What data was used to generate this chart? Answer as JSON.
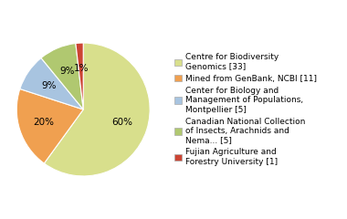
{
  "labels": [
    "Centre for Biodiversity\nGenomics [33]",
    "Mined from GenBank, NCBI [11]",
    "Center for Biology and\nManagement of Populations,\nMontpellier [5]",
    "Canadian National Collection\nof Insects, Arachnids and\nNema... [5]",
    "Fujian Agriculture and\nForestry University [1]"
  ],
  "values": [
    33,
    11,
    5,
    5,
    1
  ],
  "colors": [
    "#d8df8c",
    "#f0a050",
    "#a8c4e0",
    "#b0c870",
    "#cc4433"
  ],
  "pct_labels": [
    "60%",
    "20%",
    "9%",
    "9%",
    "1%"
  ],
  "startangle": 90,
  "counterclock": false,
  "background_color": "#ffffff",
  "legend_fontsize": 6.5,
  "pct_fontsize": 7.5
}
